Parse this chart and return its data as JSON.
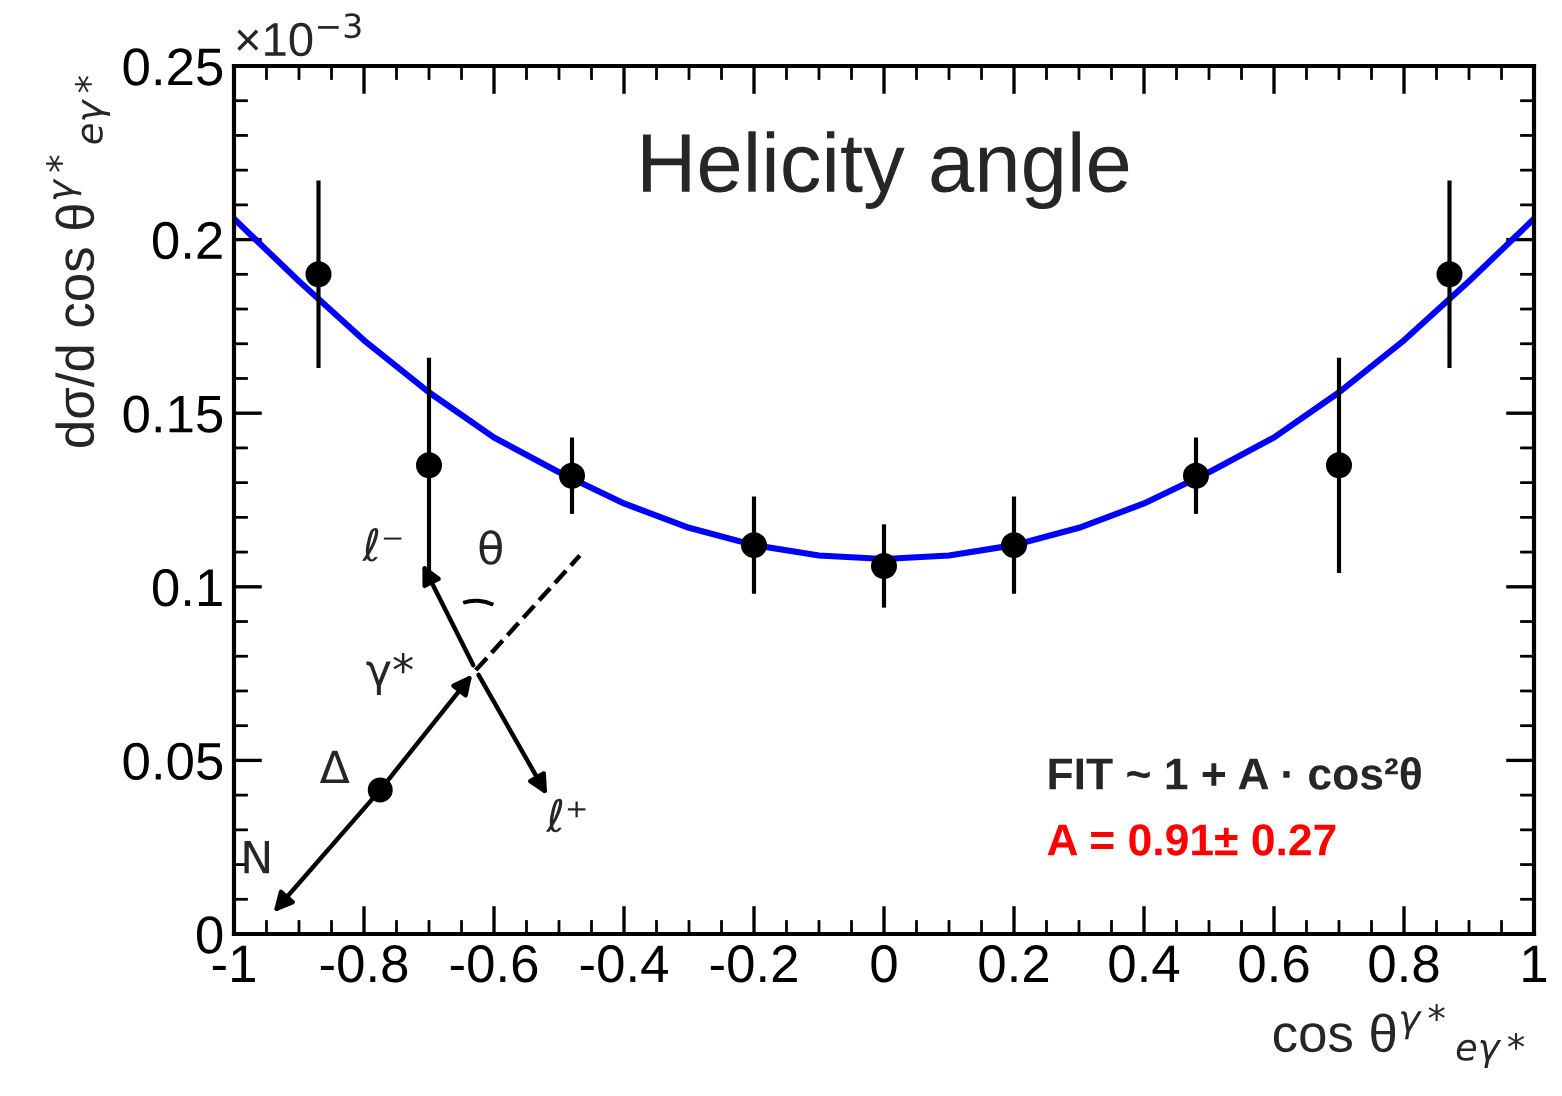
{
  "chart_data": {
    "type": "scatter",
    "title": "Helicity angle",
    "xlabel": "cos θ$^{γ*}$$_{eγ*}$",
    "ylabel": "dσ/d cos θ$^{γ*}$$_{eγ*}$",
    "xlim": [
      -1,
      1
    ],
    "xticks": [
      -1,
      -0.8,
      -0.6,
      -0.4,
      -0.2,
      0,
      0.2,
      0.4,
      0.6,
      0.8,
      1
    ],
    "ylim": [
      0,
      0.25
    ],
    "yticks": [
      0,
      0.05,
      0.1,
      0.15,
      0.2,
      0.25
    ],
    "grid": false,
    "marker": "circle",
    "series": [
      {
        "color": "#000000",
        "x": [
          -0.87,
          -0.7,
          -0.48,
          -0.2,
          0,
          0.2,
          0.48,
          0.7,
          0.87
        ],
        "values": [
          0.19,
          0.135,
          0.132,
          0.112,
          0.106,
          0.112,
          0.132,
          0.135,
          0.19
        ],
        "errors": [
          0.027,
          0.031,
          0.011,
          0.014,
          0.012,
          0.014,
          0.011,
          0.031,
          0.027
        ]
      },
      {
        "type": "line",
        "marker": "none",
        "color": "#0000ff",
        "line_style": "solid",
        "x": [
          -1,
          -0.9,
          -0.8,
          -0.7,
          -0.6,
          -0.5,
          -0.4,
          -0.3,
          -0.2,
          -0.1,
          0,
          0.1,
          0.2,
          0.3,
          0.4,
          0.5,
          0.6,
          0.7,
          0.8,
          0.9,
          1
        ],
        "values": [
          0.206,
          0.188,
          0.171,
          0.156,
          0.143,
          0.133,
          0.124,
          0.117,
          0.112,
          0.109,
          0.108,
          0.109,
          0.112,
          0.117,
          0.124,
          0.133,
          0.143,
          0.156,
          0.171,
          0.188,
          0.206
        ]
      }
    ],
    "annotations": [
      "×10$^{−3}$",
      "FIT ~ 1 + A · cos²θ",
      "A = 0.91± 0.27",
      "ℓ⁻",
      "θ",
      "γ*",
      "Δ",
      "N",
      "ℓ⁺"
    ]
  }
}
